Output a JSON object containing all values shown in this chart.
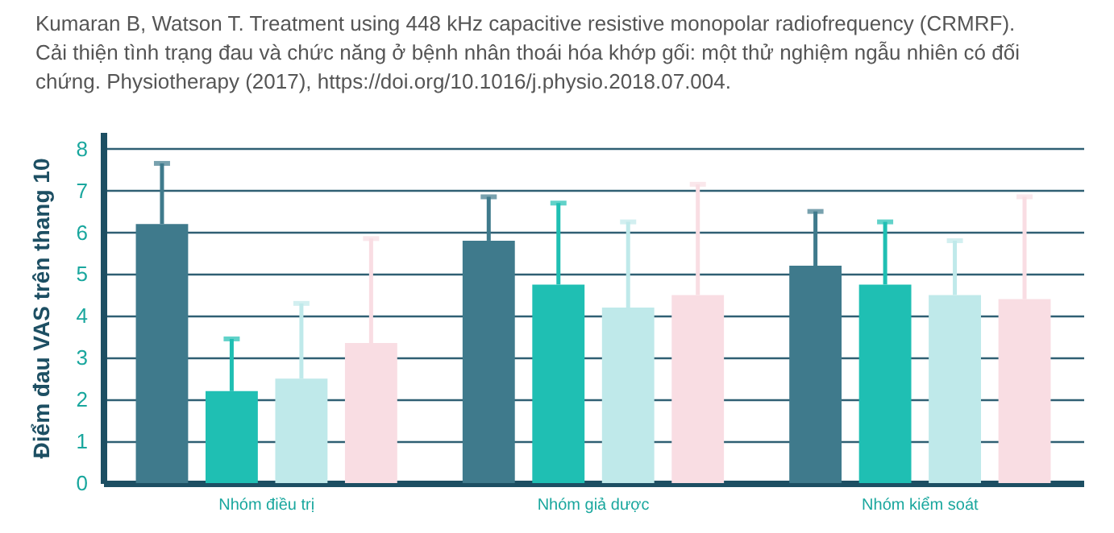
{
  "chart_data": {
    "type": "bar",
    "title": "Kumaran B, Watson T. Treatment using 448 kHz capacitive resistive monopolar radiofrequency (CRMRF).  Cải thiện tình trạng đau và chức năng ở bệnh nhân thoái hóa khớp gối: một thử nghiệm ngẫu nhiên có đối chứng. Physiotherapy (2017), https://doi.org/10.1016/j.physio.2018.07.004.",
    "ylabel": "Điểm đau VAS trên thang 10",
    "categories": [
      "Nhóm điều trị",
      "Nhóm giả dược",
      "Nhóm kiểm soát"
    ],
    "series": [
      {
        "color": "#3f7a8c",
        "values": [
          6.2,
          5.8,
          5.2
        ],
        "errors": [
          [
            6.2,
            7.65
          ],
          [
            5.8,
            6.85
          ],
          [
            5.2,
            6.5
          ]
        ]
      },
      {
        "color": "#1fbfb3",
        "values": [
          2.2,
          4.75,
          4.75
        ],
        "errors": [
          [
            2.2,
            3.45
          ],
          [
            4.75,
            6.7
          ],
          [
            4.75,
            6.25
          ]
        ]
      },
      {
        "color": "#bfe9ea",
        "values": [
          2.5,
          4.2,
          4.5
        ],
        "errors": [
          [
            2.5,
            4.3
          ],
          [
            4.2,
            6.25
          ],
          [
            4.5,
            5.8
          ]
        ]
      },
      {
        "color": "#f9dde3",
        "values": [
          3.35,
          4.5,
          4.4
        ],
        "errors": [
          [
            3.35,
            5.85
          ],
          [
            4.5,
            7.15
          ],
          [
            4.4,
            6.85
          ]
        ]
      }
    ],
    "ylim": [
      0,
      8.4
    ],
    "yticks": [
      0,
      1,
      2,
      3,
      4,
      5,
      6,
      7,
      8
    ],
    "grid": "y",
    "legend": false
  }
}
